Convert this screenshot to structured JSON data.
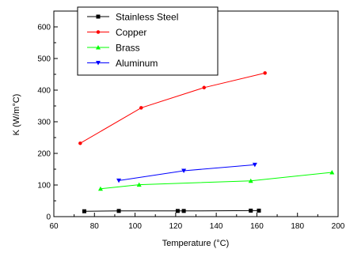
{
  "chart_data": {
    "type": "line",
    "title": "",
    "xlabel": "Temperature (°C)",
    "ylabel": "K (W/m°C)",
    "xlim": [
      60,
      200
    ],
    "ylim": [
      0,
      650
    ],
    "xticks": [
      60,
      80,
      100,
      120,
      140,
      160,
      180,
      200
    ],
    "yticks": [
      0,
      100,
      200,
      300,
      400,
      500,
      600
    ],
    "xtick_labels": [
      "60",
      "80",
      "100",
      "120",
      "140",
      "160",
      "180",
      "200"
    ],
    "ytick_labels": [
      "0",
      "100",
      "200",
      "300",
      "400",
      "500",
      "600"
    ],
    "grid": false,
    "legend_position": "top-left",
    "series": [
      {
        "name": "Stainless Steel",
        "color": "#000000",
        "marker": "square",
        "points": [
          {
            "x": 75,
            "y": 17
          },
          {
            "x": 92,
            "y": 18
          },
          {
            "x": 121,
            "y": 18
          },
          {
            "x": 124,
            "y": 18
          },
          {
            "x": 157,
            "y": 19
          },
          {
            "x": 161,
            "y": 19
          }
        ]
      },
      {
        "name": "Copper",
        "color": "#ff0000",
        "marker": "circle",
        "points": [
          {
            "x": 73,
            "y": 232
          },
          {
            "x": 103,
            "y": 344
          },
          {
            "x": 134,
            "y": 408
          },
          {
            "x": 164,
            "y": 454
          }
        ]
      },
      {
        "name": "Brass",
        "color": "#00ff00",
        "marker": "triangle-up",
        "points": [
          {
            "x": 83,
            "y": 88
          },
          {
            "x": 102,
            "y": 101
          },
          {
            "x": 157,
            "y": 113
          },
          {
            "x": 197,
            "y": 140
          }
        ]
      },
      {
        "name": "Aluminum",
        "color": "#0000ff",
        "marker": "triangle-down",
        "points": [
          {
            "x": 92,
            "y": 114
          },
          {
            "x": 124,
            "y": 145
          },
          {
            "x": 159,
            "y": 164
          }
        ]
      }
    ]
  }
}
